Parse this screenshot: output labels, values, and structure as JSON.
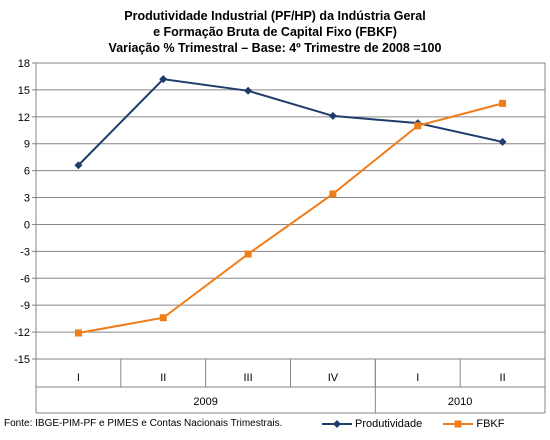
{
  "chart_data": {
    "type": "line",
    "title": [
      "Produtividade Industrial (PF/HP) da Indústria Geral",
      "e Formação Bruta de Capital Fixo (FBKF)",
      "Variação % Trimestral – Base: 4º Trimestre de 2008 =100"
    ],
    "categories": [
      "I",
      "II",
      "III",
      "IV",
      "I",
      "II"
    ],
    "year_groups": [
      {
        "label": "2009",
        "span": 4
      },
      {
        "label": "2010",
        "span": 2
      }
    ],
    "ylim": [
      -15,
      18
    ],
    "yticks": [
      18,
      15,
      12,
      9,
      6,
      3,
      0,
      -3,
      -6,
      -9,
      -12,
      -15
    ],
    "series": [
      {
        "name": "Produtividade",
        "color": "#1f3d6b",
        "marker": "diamond",
        "values": [
          6.6,
          16.2,
          14.9,
          12.1,
          11.3,
          9.2
        ]
      },
      {
        "name": "FBKF",
        "color": "#f07d1a",
        "marker": "square",
        "values": [
          -12.1,
          -10.4,
          -3.3,
          3.4,
          11.0,
          13.5
        ]
      }
    ],
    "grid": "horizontal",
    "legend": "bottom-right"
  },
  "source": "Fonte: IBGE-PIM-PF e PIMES e Contas Nacionais Trimestrais."
}
